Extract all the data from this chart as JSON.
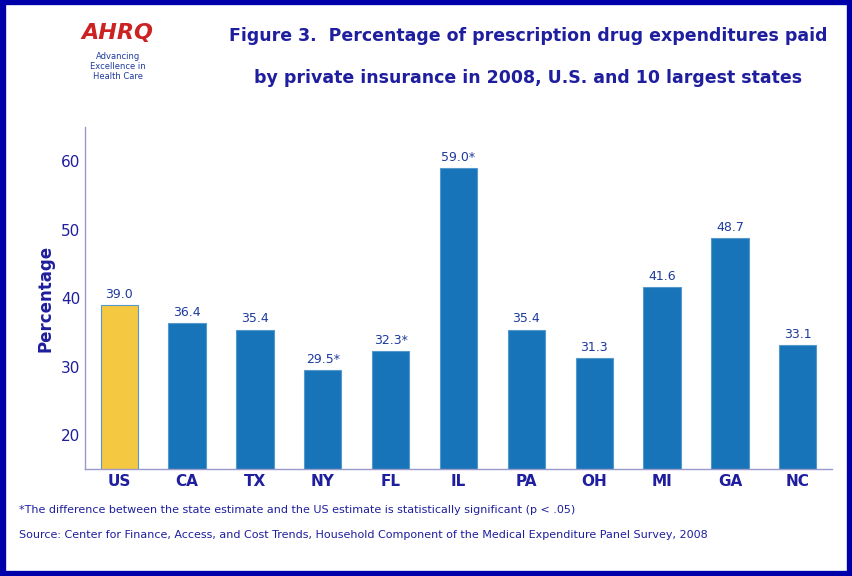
{
  "categories": [
    "US",
    "CA",
    "TX",
    "NY",
    "FL",
    "IL",
    "PA",
    "OH",
    "MI",
    "GA",
    "NC"
  ],
  "values": [
    39.0,
    36.4,
    35.4,
    29.5,
    32.3,
    59.0,
    35.4,
    31.3,
    41.6,
    48.7,
    33.1
  ],
  "labels": [
    "39.0",
    "36.4",
    "35.4",
    "29.5*",
    "32.3*",
    "59.0*",
    "35.4",
    "31.3",
    "41.6",
    "48.7",
    "33.1"
  ],
  "bar_colors": [
    "#F5C842",
    "#1874B8",
    "#1874B8",
    "#1874B8",
    "#1874B8",
    "#1874B8",
    "#1874B8",
    "#1874B8",
    "#1874B8",
    "#1874B8",
    "#1874B8"
  ],
  "title_line1": "Figure 3.  Percentage of prescription drug expenditures paid",
  "title_line2": "by private insurance in 2008, U.S. and 10 largest states",
  "ylabel": "Percentage",
  "ylim": [
    15,
    65
  ],
  "yticks": [
    20,
    30,
    40,
    50,
    60
  ],
  "fig_bg_color": "#FFFFFF",
  "plot_bg_color": "#FFFFFF",
  "axis_color": "#9999CC",
  "text_color": "#1E1E9E",
  "label_color": "#1E3A9E",
  "footnote1": "*The difference between the state estimate and the US estimate is statistically significant (p < .05)",
  "footnote2": "Source: Center for Finance, Access, and Cost Trends, Household Component of the Medical Expenditure Panel Survey, 2008",
  "outer_border_color": "#0000AA",
  "divider_color": "#0000AA",
  "logo_bg_color": "#29A8D8",
  "ahrq_text_color": "#CC2222",
  "ahrq_sub_color": "#1E3A9E",
  "bar_edge_color": "#5599CC"
}
